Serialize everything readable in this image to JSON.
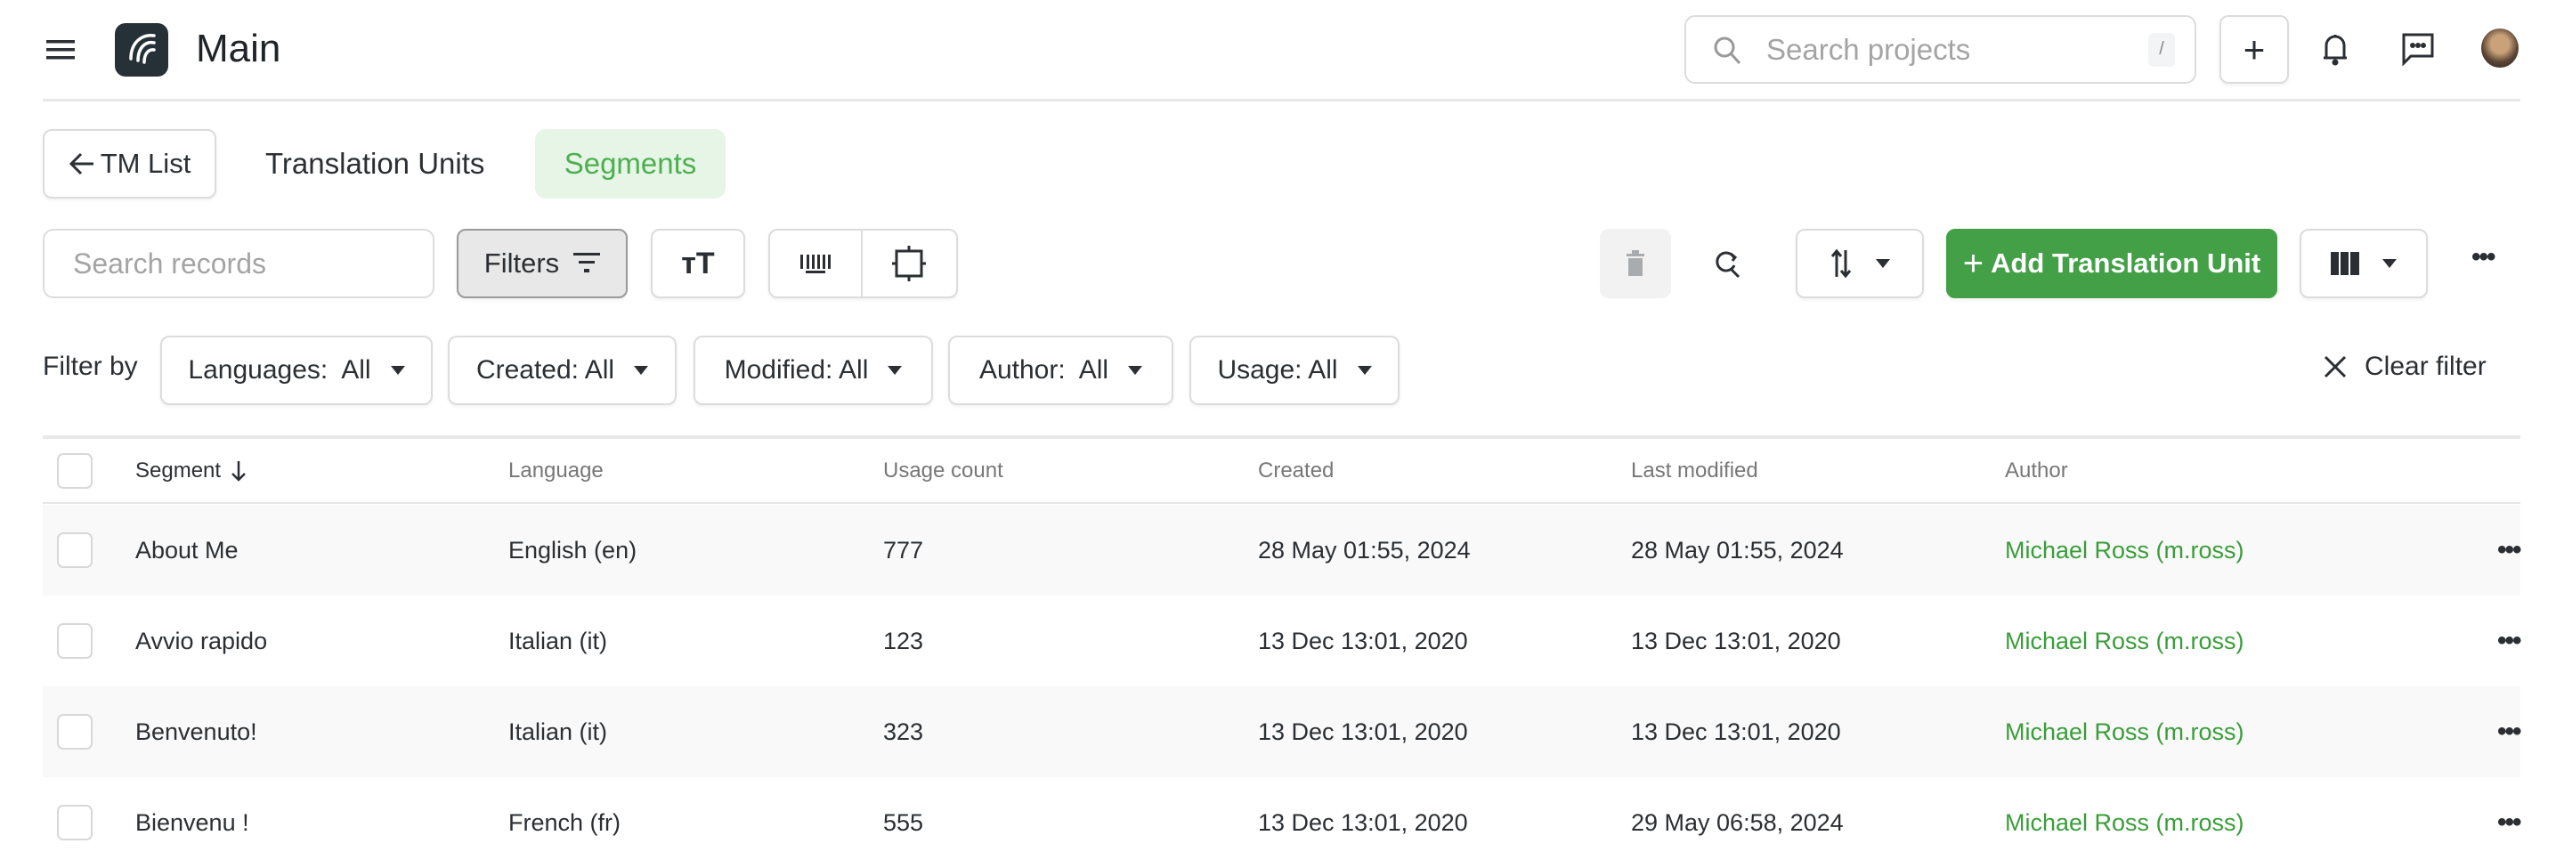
{
  "header": {
    "title": "Main",
    "search_placeholder": "Search projects",
    "search_shortcut": "/"
  },
  "tabs": {
    "back_label": "TM List",
    "items": [
      {
        "label": "Translation Units",
        "active": false
      },
      {
        "label": "Segments",
        "active": true
      }
    ]
  },
  "toolbar": {
    "search_placeholder": "Search records",
    "filters_label": "Filters",
    "add_label": "Add Translation Unit"
  },
  "filter_bar": {
    "label": "Filter by",
    "filters": [
      {
        "name": "Languages:",
        "value": "All"
      },
      {
        "name": "Created:",
        "value": "All"
      },
      {
        "name": "Modified:",
        "value": "All"
      },
      {
        "name": "Author:",
        "value": "All"
      },
      {
        "name": "Usage:",
        "value": "All"
      }
    ],
    "clear_label": "Clear filter"
  },
  "table": {
    "columns": [
      "Segment",
      "Language",
      "Usage count",
      "Created",
      "Last modified",
      "Author"
    ],
    "sort": {
      "column": "Segment",
      "direction": "desc"
    },
    "rows": [
      {
        "segment": "About Me",
        "language": "English (en)",
        "usage": "777",
        "created": "28 May 01:55, 2024",
        "modified": "28 May 01:55, 2024",
        "author": "Michael Ross (m.ross)"
      },
      {
        "segment": "Avvio rapido",
        "language": "Italian (it)",
        "usage": "123",
        "created": "13 Dec 13:01, 2020",
        "modified": "13 Dec 13:01, 2020",
        "author": "Michael Ross (m.ross)"
      },
      {
        "segment": "Benvenuto!",
        "language": "Italian (it)",
        "usage": "323",
        "created": "13 Dec 13:01, 2020",
        "modified": "13 Dec 13:01, 2020",
        "author": "Michael Ross (m.ross)"
      },
      {
        "segment": "Bienvenu !",
        "language": "French (fr)",
        "usage": "555",
        "created": "13 Dec 13:01, 2020",
        "modified": "29 May 06:58, 2024",
        "author": "Michael Ross (m.ross)"
      }
    ]
  },
  "colors": {
    "accent": "#43a047",
    "accent_text": "#3a9d3a",
    "active_tab_bg": "#e7f5e7"
  }
}
